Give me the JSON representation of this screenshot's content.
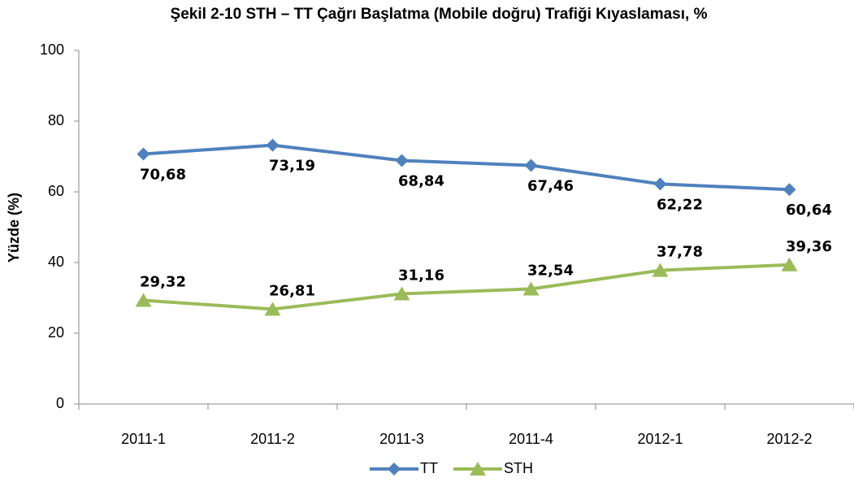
{
  "chart_data": {
    "type": "line",
    "title": "Şekil 2-10 STH – TT Çağrı Başlatma (Mobile doğru) Trafiği Kıyaslaması, %",
    "y_label": "Yüzde (%)",
    "categories": [
      "2011-1",
      "2011-2",
      "2011-3",
      "2011-4",
      "2012-1",
      "2012-2"
    ],
    "series": [
      {
        "name": "TT",
        "color": "#4f81bd",
        "marker": "diamond",
        "values": [
          70.68,
          73.19,
          68.84,
          67.46,
          62.22,
          60.64
        ],
        "value_labels": [
          "70,68",
          "73,19",
          "68,84",
          "67,46",
          "62,22",
          "60,64"
        ]
      },
      {
        "name": "STH",
        "color": "#9bbb59",
        "marker": "triangle",
        "values": [
          29.32,
          26.81,
          31.16,
          32.54,
          37.78,
          39.36
        ],
        "value_labels": [
          "29,32",
          "26,81",
          "31,16",
          "32,54",
          "37,78",
          "39,36"
        ]
      }
    ],
    "ylim": [
      0,
      100
    ],
    "yticks": [
      0,
      20,
      40,
      60,
      80,
      100
    ],
    "grid": false,
    "legend": "bottom"
  }
}
